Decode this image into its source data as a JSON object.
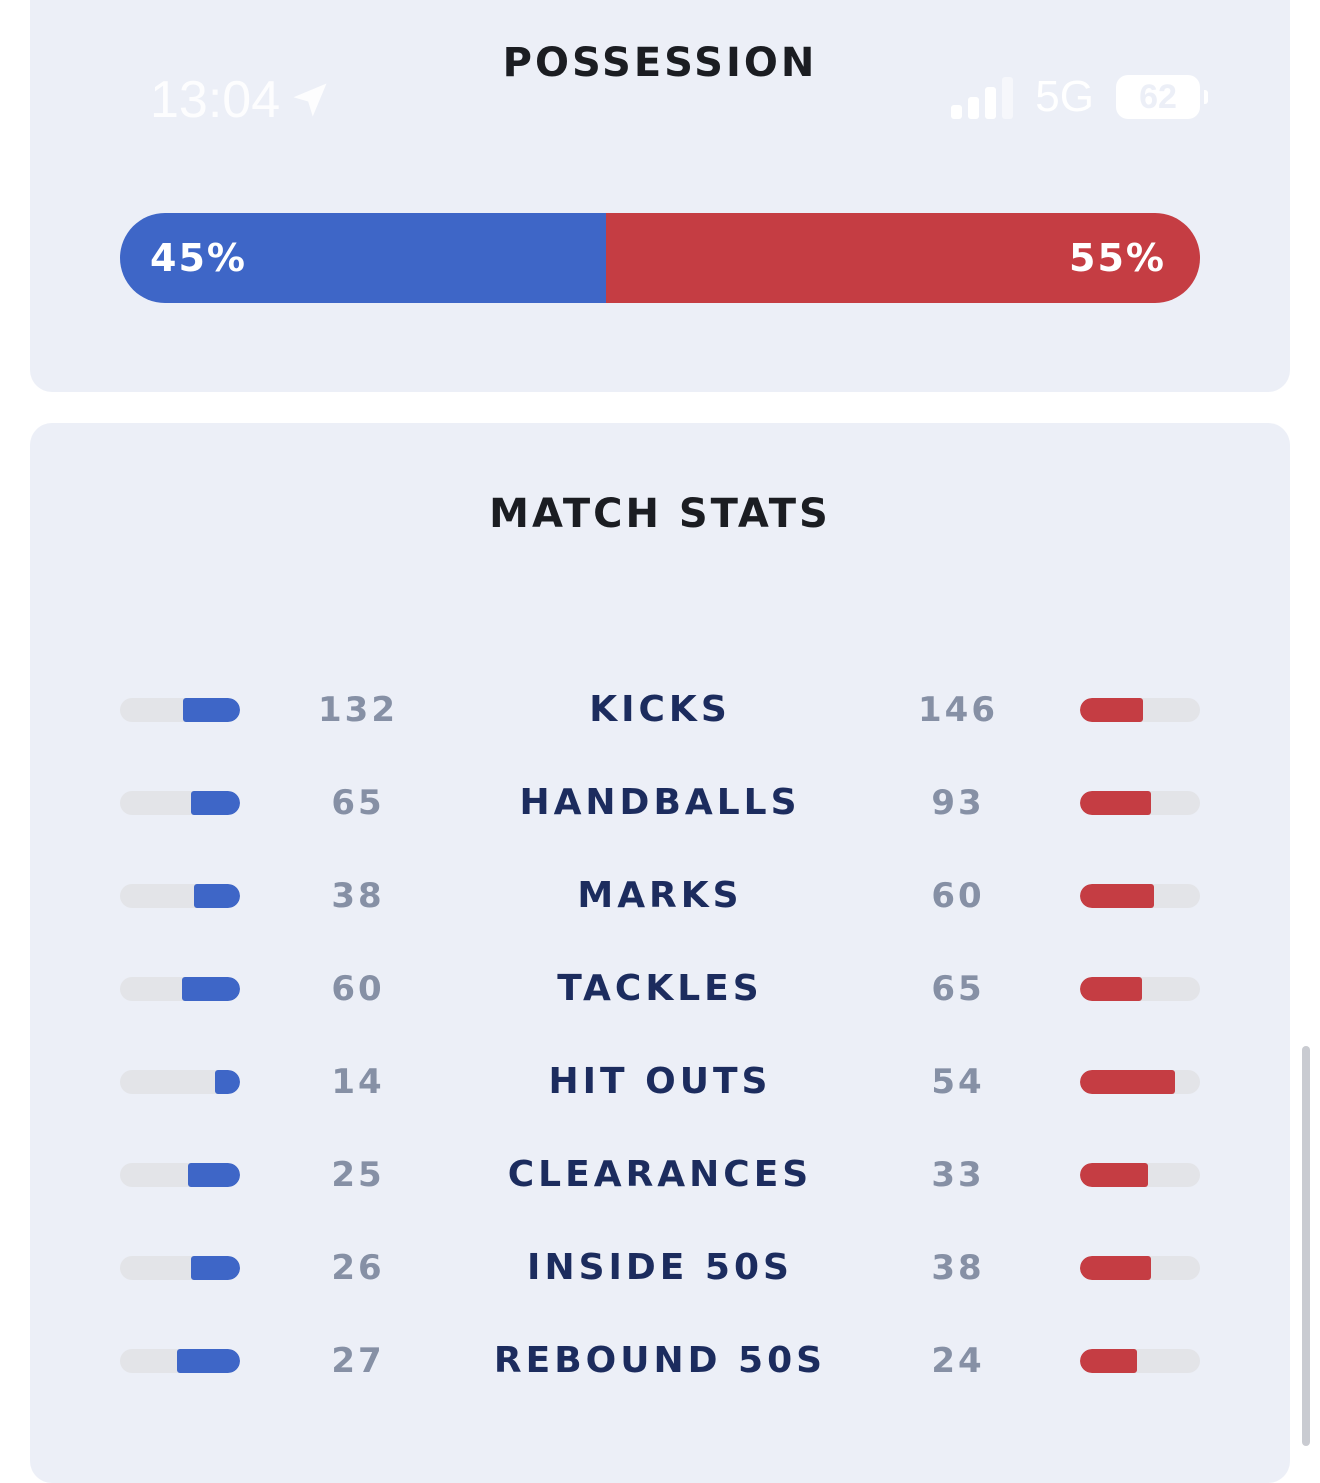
{
  "status_bar": {
    "time": "13:04",
    "network": "5G",
    "battery": "62",
    "location_icon": "location-arrow-icon",
    "signal_icon": "cellular-signal-icon"
  },
  "possession": {
    "title": "POSSESSION",
    "home_label": "45%",
    "away_label": "55%",
    "home_percent": 45,
    "away_percent": 55
  },
  "match_stats": {
    "title": "MATCH STATS",
    "rows": [
      {
        "label": "KICKS",
        "home": "132",
        "away": "146"
      },
      {
        "label": "HANDBALLS",
        "home": "65",
        "away": "93"
      },
      {
        "label": "MARKS",
        "home": "38",
        "away": "60"
      },
      {
        "label": "TACKLES",
        "home": "60",
        "away": "65"
      },
      {
        "label": "HIT OUTS",
        "home": "14",
        "away": "54"
      },
      {
        "label": "CLEARANCES",
        "home": "25",
        "away": "33"
      },
      {
        "label": "INSIDE 50S",
        "home": "26",
        "away": "38"
      },
      {
        "label": "REBOUND 50S",
        "home": "27",
        "away": "24"
      }
    ]
  },
  "colors": {
    "home": "#3e66c7",
    "away": "#c53d43",
    "card_bg": "#eceff7",
    "track": "#e3e4e8",
    "stat_label": "#1c2c5e",
    "stat_value": "#8690a5"
  }
}
